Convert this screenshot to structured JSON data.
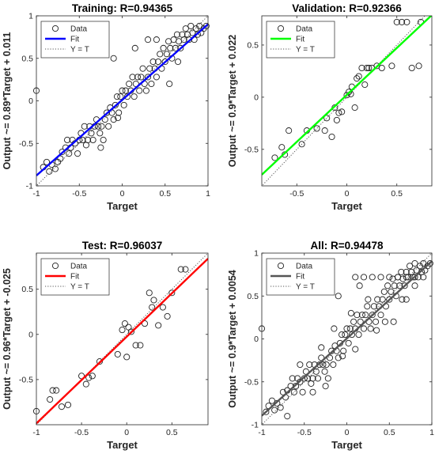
{
  "chart_data": [
    {
      "type": "scatter",
      "title": "Training: R=0.94365",
      "xlabel": "Target",
      "ylabel": "Output ~= 0.89*Target + 0.011",
      "xlim": [
        -1,
        1
      ],
      "ylim": [
        -1,
        1
      ],
      "xticks": [
        -1,
        -0.5,
        0,
        0.5,
        1
      ],
      "yticks": [
        -1,
        -0.5,
        0,
        0.5,
        1
      ],
      "fit": {
        "slope": 0.89,
        "intercept": 0.011,
        "color": "#0000ff"
      },
      "legend": {
        "position": "top-left",
        "entries": [
          "Data",
          "Fit",
          "Y = T"
        ]
      },
      "points": [
        [
          -1,
          0.12
        ],
        [
          -0.92,
          -0.78
        ],
        [
          -0.88,
          -0.72
        ],
        [
          -0.85,
          -0.83
        ],
        [
          -0.82,
          -0.75
        ],
        [
          -0.78,
          -0.8
        ],
        [
          -0.75,
          -0.72
        ],
        [
          -0.72,
          -0.68
        ],
        [
          -0.7,
          -0.6
        ],
        [
          -0.66,
          -0.55
        ],
        [
          -0.64,
          -0.46
        ],
        [
          -0.62,
          -0.62
        ],
        [
          -0.6,
          -0.55
        ],
        [
          -0.58,
          -0.46
        ],
        [
          -0.55,
          -0.5
        ],
        [
          -0.52,
          -0.62
        ],
        [
          -0.5,
          -0.46
        ],
        [
          -0.48,
          -0.38
        ],
        [
          -0.46,
          -0.46
        ],
        [
          -0.44,
          -0.3
        ],
        [
          -0.42,
          -0.52
        ],
        [
          -0.4,
          -0.46
        ],
        [
          -0.38,
          -0.3
        ],
        [
          -0.36,
          -0.38
        ],
        [
          -0.34,
          -0.46
        ],
        [
          -0.32,
          -0.3
        ],
        [
          -0.3,
          -0.22
        ],
        [
          -0.28,
          -0.3
        ],
        [
          -0.26,
          -0.38
        ],
        [
          -0.24,
          -0.3
        ],
        [
          -0.22,
          -0.46
        ],
        [
          -0.2,
          -0.22
        ],
        [
          -0.18,
          -0.14
        ],
        [
          -0.16,
          -0.3
        ],
        [
          -0.14,
          -0.08
        ],
        [
          -0.12,
          -0.14
        ],
        [
          -0.1,
          -0.22
        ],
        [
          -0.08,
          -0.05
        ],
        [
          -0.06,
          0.05
        ],
        [
          -0.04,
          -0.14
        ],
        [
          -0.02,
          0.05
        ],
        [
          0,
          0.12
        ],
        [
          0.02,
          -0.05
        ],
        [
          0.04,
          0.12
        ],
        [
          0.06,
          0.05
        ],
        [
          0.08,
          0.2
        ],
        [
          0.1,
          0.12
        ],
        [
          0.12,
          0.28
        ],
        [
          0.14,
          0.05
        ],
        [
          0.16,
          0.2
        ],
        [
          0.18,
          0.28
        ],
        [
          0.2,
          0.12
        ],
        [
          0.22,
          0.28
        ],
        [
          0.24,
          0.38
        ],
        [
          0.26,
          0.2
        ],
        [
          0.28,
          0.12
        ],
        [
          0.3,
          0.28
        ],
        [
          0.32,
          0.38
        ],
        [
          0.34,
          0.2
        ],
        [
          0.36,
          0.46
        ],
        [
          0.38,
          0.38
        ],
        [
          0.4,
          0.28
        ],
        [
          0.42,
          0.46
        ],
        [
          0.44,
          0.55
        ],
        [
          0.46,
          0.38
        ],
        [
          0.48,
          0.62
        ],
        [
          0.5,
          0.46
        ],
        [
          0.52,
          0.55
        ],
        [
          0.54,
          0.7
        ],
        [
          0.56,
          0.62
        ],
        [
          0.58,
          0.5
        ],
        [
          0.6,
          0.72
        ],
        [
          0.62,
          0.62
        ],
        [
          0.64,
          0.78
        ],
        [
          0.66,
          0.7
        ],
        [
          0.68,
          0.62
        ],
        [
          0.7,
          0.78
        ],
        [
          0.72,
          0.72
        ],
        [
          0.74,
          0.85
        ],
        [
          0.76,
          0.78
        ],
        [
          0.78,
          0.72
        ],
        [
          0.8,
          0.88
        ],
        [
          0.82,
          0.8
        ],
        [
          0.84,
          0.72
        ],
        [
          0.86,
          0.85
        ],
        [
          0.88,
          0.78
        ],
        [
          0.9,
          0.88
        ],
        [
          0.92,
          0.8
        ],
        [
          0.95,
          0.85
        ],
        [
          0.98,
          0.88
        ],
        [
          0.3,
          0.72
        ],
        [
          0.4,
          0.72
        ],
        [
          -0.1,
          0.5
        ],
        [
          0.15,
          0.62
        ],
        [
          -0.25,
          -0.55
        ],
        [
          -0.05,
          -0.2
        ],
        [
          0.55,
          0.2
        ],
        [
          0.65,
          0.46
        ]
      ]
    },
    {
      "type": "scatter",
      "title": "Validation: R=0.92366",
      "xlabel": "Target",
      "ylabel": "Output ~= 0.9*Target + 0.022",
      "xlim": [
        -0.85,
        0.85
      ],
      "ylim": [
        -0.85,
        0.78
      ],
      "xticks": [
        -0.5,
        0,
        0.5
      ],
      "yticks": [
        -0.5,
        0,
        0.5
      ],
      "fit": {
        "slope": 0.9,
        "intercept": 0.022,
        "color": "#00ff00"
      },
      "legend": {
        "position": "top-left",
        "entries": [
          "Data",
          "Fit",
          "Y = T"
        ]
      },
      "points": [
        [
          -0.72,
          -0.58
        ],
        [
          -0.65,
          -0.48
        ],
        [
          -0.62,
          -0.55
        ],
        [
          -0.58,
          -0.32
        ],
        [
          -0.45,
          -0.45
        ],
        [
          -0.4,
          -0.32
        ],
        [
          -0.3,
          -0.3
        ],
        [
          -0.22,
          -0.32
        ],
        [
          -0.15,
          -0.38
        ],
        [
          -0.12,
          -0.1
        ],
        [
          -0.1,
          -0.22
        ],
        [
          -0.08,
          -0.15
        ],
        [
          -0.05,
          -0.14
        ],
        [
          0,
          0.02
        ],
        [
          0.02,
          0.05
        ],
        [
          0.04,
          0.03
        ],
        [
          0.08,
          -0.1
        ],
        [
          0.12,
          0.2
        ],
        [
          0.15,
          0.28
        ],
        [
          0.18,
          0.12
        ],
        [
          0.2,
          0.28
        ],
        [
          0.22,
          0.28
        ],
        [
          0.25,
          0.28
        ],
        [
          0.3,
          0.3
        ],
        [
          0.35,
          0.28
        ],
        [
          0.45,
          0.3
        ],
        [
          0.5,
          0.72
        ],
        [
          0.55,
          0.72
        ],
        [
          0.6,
          0.72
        ],
        [
          0.65,
          0.28
        ],
        [
          0.72,
          0.3
        ],
        [
          0.74,
          0.72
        ],
        [
          -0.2,
          -0.2
        ],
        [
          0.05,
          0.1
        ],
        [
          0.1,
          0.18
        ]
      ]
    },
    {
      "type": "scatter",
      "title": "Test: R=0.96037",
      "xlabel": "Target",
      "ylabel": "Output ~= 0.96*Target + -0.025",
      "xlim": [
        -1,
        0.9
      ],
      "ylim": [
        -1,
        0.9
      ],
      "xticks": [
        -1,
        -0.5,
        0,
        0.5
      ],
      "yticks": [
        -0.5,
        0,
        0.5
      ],
      "fit": {
        "slope": 0.96,
        "intercept": -0.025,
        "color": "#ff0000"
      },
      "legend": {
        "position": "top-left",
        "entries": [
          "Data",
          "Fit",
          "Y = T"
        ]
      },
      "points": [
        [
          -1,
          -0.85
        ],
        [
          -0.85,
          -0.72
        ],
        [
          -0.82,
          -0.62
        ],
        [
          -0.78,
          -0.62
        ],
        [
          -0.72,
          -0.8
        ],
        [
          -0.65,
          -0.78
        ],
        [
          -0.5,
          -0.46
        ],
        [
          -0.45,
          -0.55
        ],
        [
          -0.42,
          -0.48
        ],
        [
          -0.38,
          -0.46
        ],
        [
          -0.1,
          -0.22
        ],
        [
          -0.05,
          0.05
        ],
        [
          -0.02,
          0.12
        ],
        [
          0,
          -0.25
        ],
        [
          0.02,
          0.08
        ],
        [
          0.1,
          -0.12
        ],
        [
          0.15,
          -0.12
        ],
        [
          0.2,
          0.12
        ],
        [
          0.25,
          0.46
        ],
        [
          0.28,
          0.3
        ],
        [
          0.3,
          0.38
        ],
        [
          0.35,
          0.1
        ],
        [
          0.4,
          0.3
        ],
        [
          0.45,
          0.2
        ],
        [
          0.5,
          0.46
        ],
        [
          0.6,
          0.72
        ],
        [
          0.65,
          0.72
        ],
        [
          -0.3,
          -0.3
        ],
        [
          0.05,
          0.03
        ]
      ]
    },
    {
      "type": "scatter",
      "title": "All: R=0.94478",
      "xlabel": "Target",
      "ylabel": "Output ~= 0.9*Target + 0.0054",
      "xlim": [
        -1,
        1
      ],
      "ylim": [
        -1,
        1
      ],
      "xticks": [
        -1,
        -0.5,
        0,
        0.5,
        1
      ],
      "yticks": [
        -1,
        -0.5,
        0,
        0.5,
        1
      ],
      "fit": {
        "slope": 0.9,
        "intercept": 0.0054,
        "color": "#555555"
      },
      "legend": {
        "position": "top-left",
        "entries": [
          "Data",
          "Fit",
          "Y = T"
        ]
      },
      "points": [
        [
          -1,
          0.12
        ],
        [
          -0.95,
          -0.85
        ],
        [
          -0.92,
          -0.78
        ],
        [
          -0.88,
          -0.72
        ],
        [
          -0.85,
          -0.83
        ],
        [
          -0.82,
          -0.75
        ],
        [
          -0.78,
          -0.8
        ],
        [
          -0.75,
          -0.62
        ],
        [
          -0.72,
          -0.68
        ],
        [
          -0.7,
          -0.6
        ],
        [
          -0.66,
          -0.55
        ],
        [
          -0.64,
          -0.46
        ],
        [
          -0.62,
          -0.62
        ],
        [
          -0.6,
          -0.55
        ],
        [
          -0.58,
          -0.46
        ],
        [
          -0.55,
          -0.5
        ],
        [
          -0.52,
          -0.62
        ],
        [
          -0.5,
          -0.46
        ],
        [
          -0.48,
          -0.38
        ],
        [
          -0.46,
          -0.46
        ],
        [
          -0.44,
          -0.3
        ],
        [
          -0.42,
          -0.52
        ],
        [
          -0.4,
          -0.46
        ],
        [
          -0.38,
          -0.3
        ],
        [
          -0.36,
          -0.38
        ],
        [
          -0.34,
          -0.46
        ],
        [
          -0.32,
          -0.3
        ],
        [
          -0.3,
          -0.22
        ],
        [
          -0.28,
          -0.3
        ],
        [
          -0.26,
          -0.38
        ],
        [
          -0.24,
          -0.3
        ],
        [
          -0.22,
          -0.46
        ],
        [
          -0.2,
          -0.22
        ],
        [
          -0.18,
          -0.14
        ],
        [
          -0.16,
          -0.3
        ],
        [
          -0.14,
          -0.08
        ],
        [
          -0.12,
          -0.14
        ],
        [
          -0.1,
          -0.22
        ],
        [
          -0.08,
          -0.05
        ],
        [
          -0.06,
          0.05
        ],
        [
          -0.04,
          -0.14
        ],
        [
          -0.02,
          0.05
        ],
        [
          0,
          0.12
        ],
        [
          0.02,
          -0.05
        ],
        [
          0.04,
          0.12
        ],
        [
          0.06,
          0.05
        ],
        [
          0.08,
          0.2
        ],
        [
          0.1,
          0.12
        ],
        [
          0.12,
          0.28
        ],
        [
          0.14,
          0.05
        ],
        [
          0.16,
          0.2
        ],
        [
          0.18,
          0.28
        ],
        [
          0.2,
          0.12
        ],
        [
          0.22,
          0.28
        ],
        [
          0.24,
          0.38
        ],
        [
          0.26,
          0.2
        ],
        [
          0.28,
          0.12
        ],
        [
          0.3,
          0.28
        ],
        [
          0.32,
          0.38
        ],
        [
          0.34,
          0.2
        ],
        [
          0.36,
          0.46
        ],
        [
          0.38,
          0.38
        ],
        [
          0.4,
          0.28
        ],
        [
          0.42,
          0.46
        ],
        [
          0.44,
          0.55
        ],
        [
          0.46,
          0.38
        ],
        [
          0.48,
          0.62
        ],
        [
          0.5,
          0.46
        ],
        [
          0.52,
          0.55
        ],
        [
          0.54,
          0.7
        ],
        [
          0.56,
          0.62
        ],
        [
          0.58,
          0.5
        ],
        [
          0.6,
          0.72
        ],
        [
          0.62,
          0.62
        ],
        [
          0.64,
          0.78
        ],
        [
          0.66,
          0.7
        ],
        [
          0.68,
          0.62
        ],
        [
          0.7,
          0.78
        ],
        [
          0.72,
          0.72
        ],
        [
          0.74,
          0.85
        ],
        [
          0.76,
          0.78
        ],
        [
          0.78,
          0.72
        ],
        [
          0.8,
          0.88
        ],
        [
          0.82,
          0.8
        ],
        [
          0.84,
          0.72
        ],
        [
          0.86,
          0.85
        ],
        [
          0.88,
          0.78
        ],
        [
          0.9,
          0.88
        ],
        [
          0.92,
          0.8
        ],
        [
          0.95,
          0.85
        ],
        [
          0.98,
          0.88
        ],
        [
          0.1,
          0.72
        ],
        [
          0.2,
          0.72
        ],
        [
          0.3,
          0.72
        ],
        [
          0.4,
          0.72
        ],
        [
          0.5,
          0.72
        ],
        [
          0.6,
          0.72
        ],
        [
          0.7,
          0.72
        ],
        [
          0.8,
          0.72
        ],
        [
          0.9,
          0.72
        ],
        [
          -0.1,
          0.5
        ],
        [
          0.15,
          0.62
        ],
        [
          -0.25,
          -0.55
        ],
        [
          -0.05,
          -0.2
        ],
        [
          0.55,
          0.2
        ],
        [
          0.65,
          0.46
        ],
        [
          -0.7,
          -0.9
        ],
        [
          -0.4,
          -0.62
        ],
        [
          -0.15,
          0.12
        ],
        [
          0.25,
          0.46
        ],
        [
          0.35,
          0.1
        ],
        [
          0.45,
          0.2
        ],
        [
          -0.3,
          -0.1
        ],
        [
          -0.55,
          -0.3
        ],
        [
          0.05,
          0.3
        ],
        [
          0.1,
          -0.12
        ],
        [
          0.7,
          0.46
        ],
        [
          0.8,
          0.62
        ]
      ]
    }
  ]
}
